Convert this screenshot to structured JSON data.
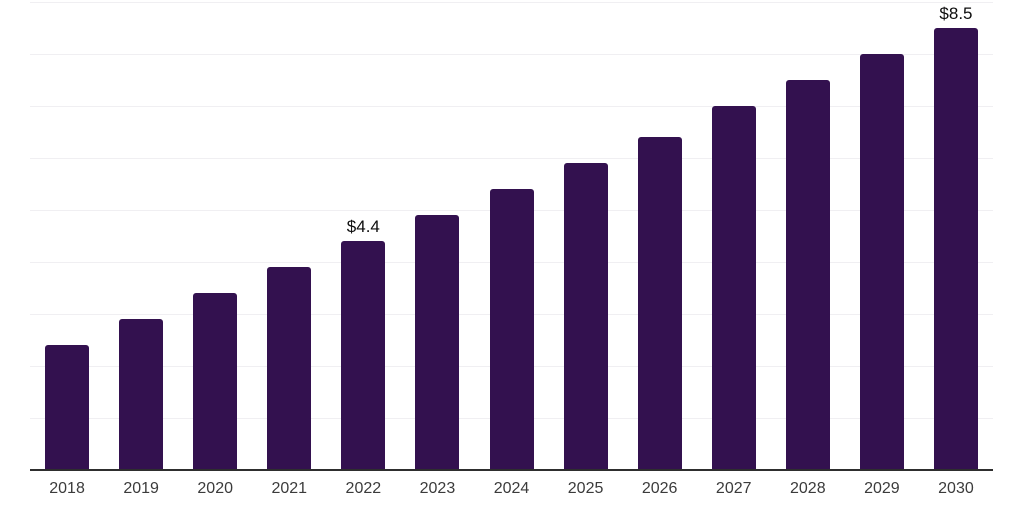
{
  "chart_data": {
    "type": "bar",
    "title": "",
    "xlabel": "",
    "ylabel": "",
    "categories": [
      "2018",
      "2019",
      "2020",
      "2021",
      "2022",
      "2023",
      "2024",
      "2025",
      "2026",
      "2027",
      "2028",
      "2029",
      "2030"
    ],
    "values": [
      2.4,
      2.9,
      3.4,
      3.9,
      4.4,
      4.9,
      5.4,
      5.9,
      6.4,
      7.0,
      7.5,
      8.0,
      8.5
    ],
    "data_labels": [
      null,
      null,
      null,
      null,
      "$4.4",
      null,
      null,
      null,
      null,
      null,
      null,
      null,
      "$8.5"
    ],
    "ylim": [
      0,
      9
    ],
    "grid": "horizontal",
    "gridline_step": 1,
    "legend": "none",
    "colors": {
      "bar": "#33114f",
      "gridline": "#f0eff2",
      "axis_line": "#2e2e2e",
      "tick_label": "#3b3b3b",
      "data_label": "#0d0d0d",
      "background": "#ffffff"
    }
  }
}
